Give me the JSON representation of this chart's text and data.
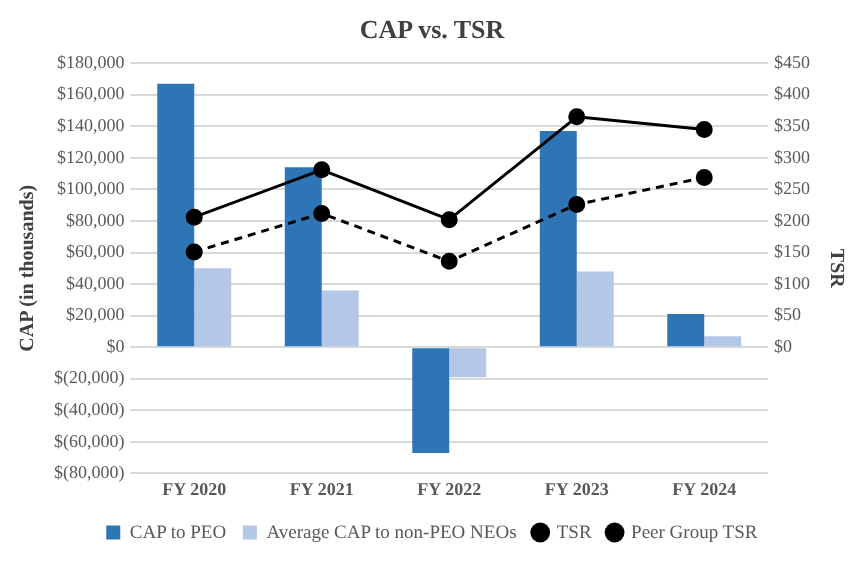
{
  "chart_data": {
    "type": "bar",
    "title": "CAP vs. TSR",
    "ylabel": "CAP (in thousands)",
    "y2label": "TSR",
    "categories": [
      "FY 2020",
      "FY 2021",
      "FY 2022",
      "FY 2023",
      "FY 2024"
    ],
    "series": [
      {
        "name": "CAP to PEO",
        "color": "#2e75b6",
        "values": [
          167000,
          114000,
          -67000,
          137000,
          21000
        ]
      },
      {
        "name": "Average CAP to non-PEO NEOs",
        "color": "#b4c7e7",
        "values": [
          50000,
          36000,
          -19000,
          48000,
          7000
        ]
      },
      {
        "name": "TSR",
        "type": "line",
        "axis": "y2",
        "color": "#000000",
        "line_style": "solid",
        "values": [
          206,
          281,
          202,
          365,
          345
        ]
      },
      {
        "name": "Peer Group TSR",
        "type": "line",
        "axis": "y2",
        "color": "#000000",
        "line_style": "dashed",
        "values": [
          151,
          212,
          136,
          226,
          269
        ]
      }
    ],
    "ylim": [
      -80000,
      180000
    ],
    "yticks": [
      {
        "value": -80000,
        "label": "$(80,000)"
      },
      {
        "value": -60000,
        "label": "$(60,000)"
      },
      {
        "value": -40000,
        "label": "$(40,000)"
      },
      {
        "value": -20000,
        "label": "$(20,000)"
      },
      {
        "value": 0,
        "label": "$0"
      },
      {
        "value": 20000,
        "label": "$20,000"
      },
      {
        "value": 40000,
        "label": "$40,000"
      },
      {
        "value": 60000,
        "label": "$60,000"
      },
      {
        "value": 80000,
        "label": "$80,000"
      },
      {
        "value": 100000,
        "label": "$100,000"
      },
      {
        "value": 120000,
        "label": "$120,000"
      },
      {
        "value": 140000,
        "label": "$140,000"
      },
      {
        "value": 160000,
        "label": "$160,000"
      },
      {
        "value": 180000,
        "label": "$180,000"
      }
    ],
    "y2lim": [
      -200,
      450
    ],
    "y2ticks": [
      {
        "value": 0,
        "label": "$0"
      },
      {
        "value": 50,
        "label": "$50"
      },
      {
        "value": 100,
        "label": "$100"
      },
      {
        "value": 150,
        "label": "$150"
      },
      {
        "value": 200,
        "label": "$200"
      },
      {
        "value": 250,
        "label": "$250"
      },
      {
        "value": 300,
        "label": "$300"
      },
      {
        "value": 350,
        "label": "$350"
      },
      {
        "value": 400,
        "label": "$400"
      },
      {
        "value": 450,
        "label": "$450"
      }
    ],
    "grid": "y",
    "legend": "bottom",
    "marker": "circle"
  }
}
